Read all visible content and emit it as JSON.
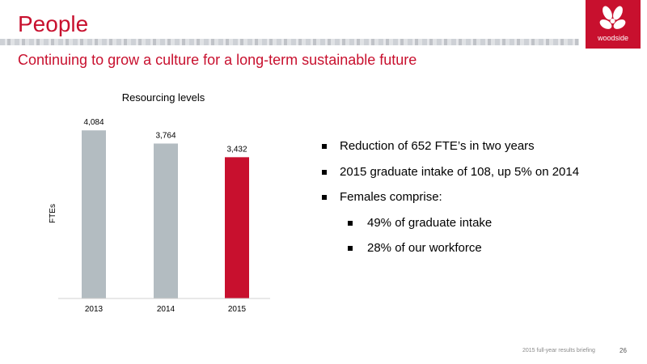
{
  "header": {
    "title": "People",
    "subtitle": "Continuing to grow a culture for a long-term sustainable future",
    "logo_text": "woodside"
  },
  "colors": {
    "accent": "#c8102e",
    "bar_grey": "#b3bcc1",
    "bar_highlight": "#c8102e"
  },
  "chart_data": {
    "type": "bar",
    "title": "Resourcing levels",
    "xlabel": "",
    "ylabel": "FTEs",
    "categories": [
      "2013",
      "2014",
      "2015"
    ],
    "values": [
      4084,
      3764,
      3432
    ],
    "data_labels": [
      "4,084",
      "3,764",
      "3,432"
    ],
    "highlight_index": 2,
    "ylim": [
      0,
      4500
    ],
    "grid": false,
    "legend": "none"
  },
  "bullets": [
    {
      "level": 1,
      "text": "Reduction of 652 FTE’s in two years"
    },
    {
      "level": 1,
      "text": "2015 graduate intake of 108, up 5% on 2014"
    },
    {
      "level": 1,
      "text": "Females comprise:"
    },
    {
      "level": 2,
      "text": "49% of graduate intake"
    },
    {
      "level": 2,
      "text": "28% of our workforce"
    }
  ],
  "footer": {
    "text": "2015 full-year results briefing",
    "page_number": "26"
  }
}
